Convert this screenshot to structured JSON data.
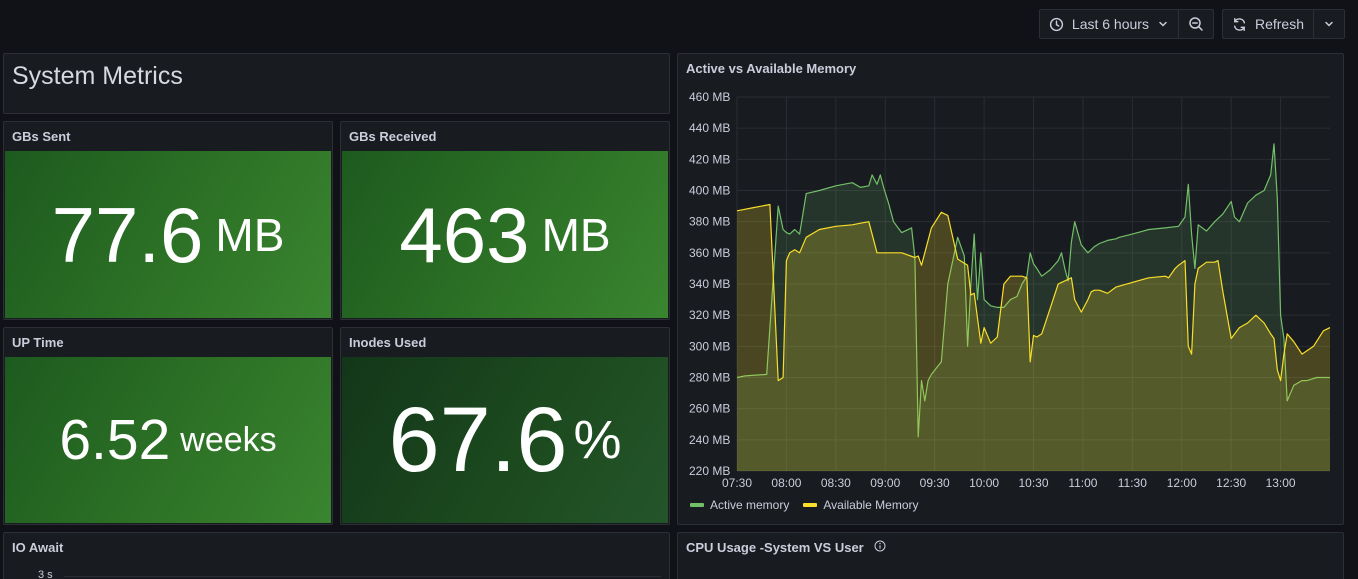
{
  "toolbar": {
    "time_range": "Last 6 hours",
    "refresh_label": "Refresh"
  },
  "text_panel": {
    "title": "System Metrics"
  },
  "stats": [
    {
      "title": "GBs Sent",
      "value": "77.6",
      "unit": "MB"
    },
    {
      "title": "GBs Received",
      "value": "463",
      "unit": "MB"
    },
    {
      "title": "UP Time",
      "value": "6.52",
      "unit": "weeks"
    },
    {
      "title": "Inodes Used",
      "value": "67.6",
      "unit": "%"
    }
  ],
  "bottom_panels": {
    "io_await": {
      "title": "IO Await",
      "first_tick": "3 s"
    },
    "cpu_usage": {
      "title": "CPU Usage -System VS User"
    }
  },
  "colors": {
    "background": "#111217",
    "panel": "#181b1f",
    "active": "#73bf69",
    "available": "#fade2a"
  },
  "chart_data": {
    "type": "area",
    "title": "Active vs Available Memory",
    "xlabel": "",
    "ylabel": "",
    "ylim": [
      220,
      460
    ],
    "y_ticks": [
      "460 MB",
      "440 MB",
      "420 MB",
      "400 MB",
      "380 MB",
      "360 MB",
      "340 MB",
      "320 MB",
      "300 MB",
      "280 MB",
      "260 MB",
      "240 MB",
      "220 MB"
    ],
    "y_tick_values": [
      460,
      440,
      420,
      400,
      380,
      360,
      340,
      320,
      300,
      280,
      260,
      240,
      220
    ],
    "x_ticks": [
      "07:30",
      "08:00",
      "08:30",
      "09:00",
      "09:30",
      "10:00",
      "10:30",
      "11:00",
      "11:30",
      "12:00",
      "12:30",
      "13:00"
    ],
    "x_tick_values": [
      0,
      30,
      60,
      90,
      120,
      150,
      180,
      210,
      240,
      270,
      300,
      330
    ],
    "x_range": [
      0,
      360
    ],
    "grid": true,
    "legend_position": "bottom-left",
    "series": [
      {
        "name": "Active memory",
        "color": "#73bf69",
        "x": [
          0,
          5,
          18,
          25,
          28,
          30,
          32,
          35,
          38,
          42,
          50,
          60,
          70,
          75,
          80,
          82,
          85,
          87,
          89,
          92,
          95,
          100,
          106,
          108,
          110,
          112,
          114,
          116,
          118,
          121,
          124,
          128,
          134,
          138,
          140,
          142,
          144,
          146,
          148,
          150,
          154,
          158,
          162,
          166,
          170,
          173,
          176,
          178,
          180,
          182,
          185,
          190,
          195,
          197,
          199,
          201,
          203,
          205,
          209,
          213,
          215,
          217,
          220,
          225,
          230,
          232,
          240,
          250,
          260,
          268,
          272,
          274,
          276,
          278,
          280,
          285,
          290,
          295,
          300,
          302,
          305,
          310,
          315,
          320,
          324,
          326,
          328,
          330,
          332,
          334,
          338,
          343,
          346,
          352,
          356,
          360
        ],
        "y": [
          280,
          281,
          282,
          390,
          375,
          373,
          372,
          375,
          372,
          398,
          400,
          403,
          405,
          402,
          403,
          410,
          404,
          410,
          402,
          392,
          380,
          373,
          376,
          357,
          242,
          278,
          265,
          278,
          282,
          286,
          290,
          340,
          370,
          358,
          300,
          340,
          372,
          330,
          360,
          330,
          326,
          325,
          325,
          330,
          332,
          340,
          345,
          360,
          353,
          350,
          345,
          349,
          355,
          360,
          350,
          342,
          367,
          380,
          365,
          360,
          362,
          364,
          366,
          368,
          369,
          370,
          372,
          375,
          376,
          377,
          383,
          404,
          372,
          350,
          378,
          374,
          380,
          385,
          393,
          383,
          380,
          392,
          397,
          400,
          410,
          430,
          395,
          320,
          305,
          265,
          275,
          278,
          278,
          280,
          280,
          280
        ]
      },
      {
        "name": "Available Memory",
        "color": "#fade2a",
        "x": [
          0,
          10,
          20,
          25,
          28,
          30,
          32,
          35,
          38,
          42,
          50,
          60,
          70,
          75,
          80,
          85,
          87,
          89,
          92,
          100,
          108,
          110,
          112,
          114,
          118,
          124,
          128,
          134,
          140,
          142,
          144,
          148,
          150,
          154,
          158,
          162,
          166,
          170,
          173,
          176,
          178,
          180,
          182,
          185,
          190,
          195,
          197,
          199,
          201,
          203,
          205,
          209,
          213,
          215,
          217,
          220,
          225,
          230,
          240,
          250,
          260,
          262,
          266,
          268,
          272,
          274,
          276,
          278,
          280,
          285,
          290,
          292,
          295,
          300,
          305,
          310,
          315,
          320,
          324,
          326,
          328,
          330,
          332,
          334,
          338,
          343,
          350,
          356,
          360
        ],
        "y": [
          387,
          389,
          391,
          278,
          280,
          355,
          360,
          362,
          360,
          370,
          375,
          377,
          378,
          379,
          380,
          360,
          360,
          360,
          360,
          360,
          357,
          358,
          352,
          360,
          376,
          386,
          384,
          356,
          352,
          333,
          334,
          302,
          312,
          302,
          306,
          340,
          345,
          345,
          345,
          344,
          290,
          307,
          306,
          308,
          324,
          340,
          341,
          342,
          343,
          344,
          330,
          322,
          330,
          335,
          336,
          336,
          334,
          338,
          341,
          344,
          345,
          344,
          350,
          352,
          355,
          300,
          295,
          340,
          350,
          354,
          354,
          355,
          335,
          305,
          312,
          315,
          320,
          315,
          308,
          305,
          285,
          278,
          295,
          308,
          303,
          295,
          300,
          310,
          312
        ]
      }
    ]
  }
}
